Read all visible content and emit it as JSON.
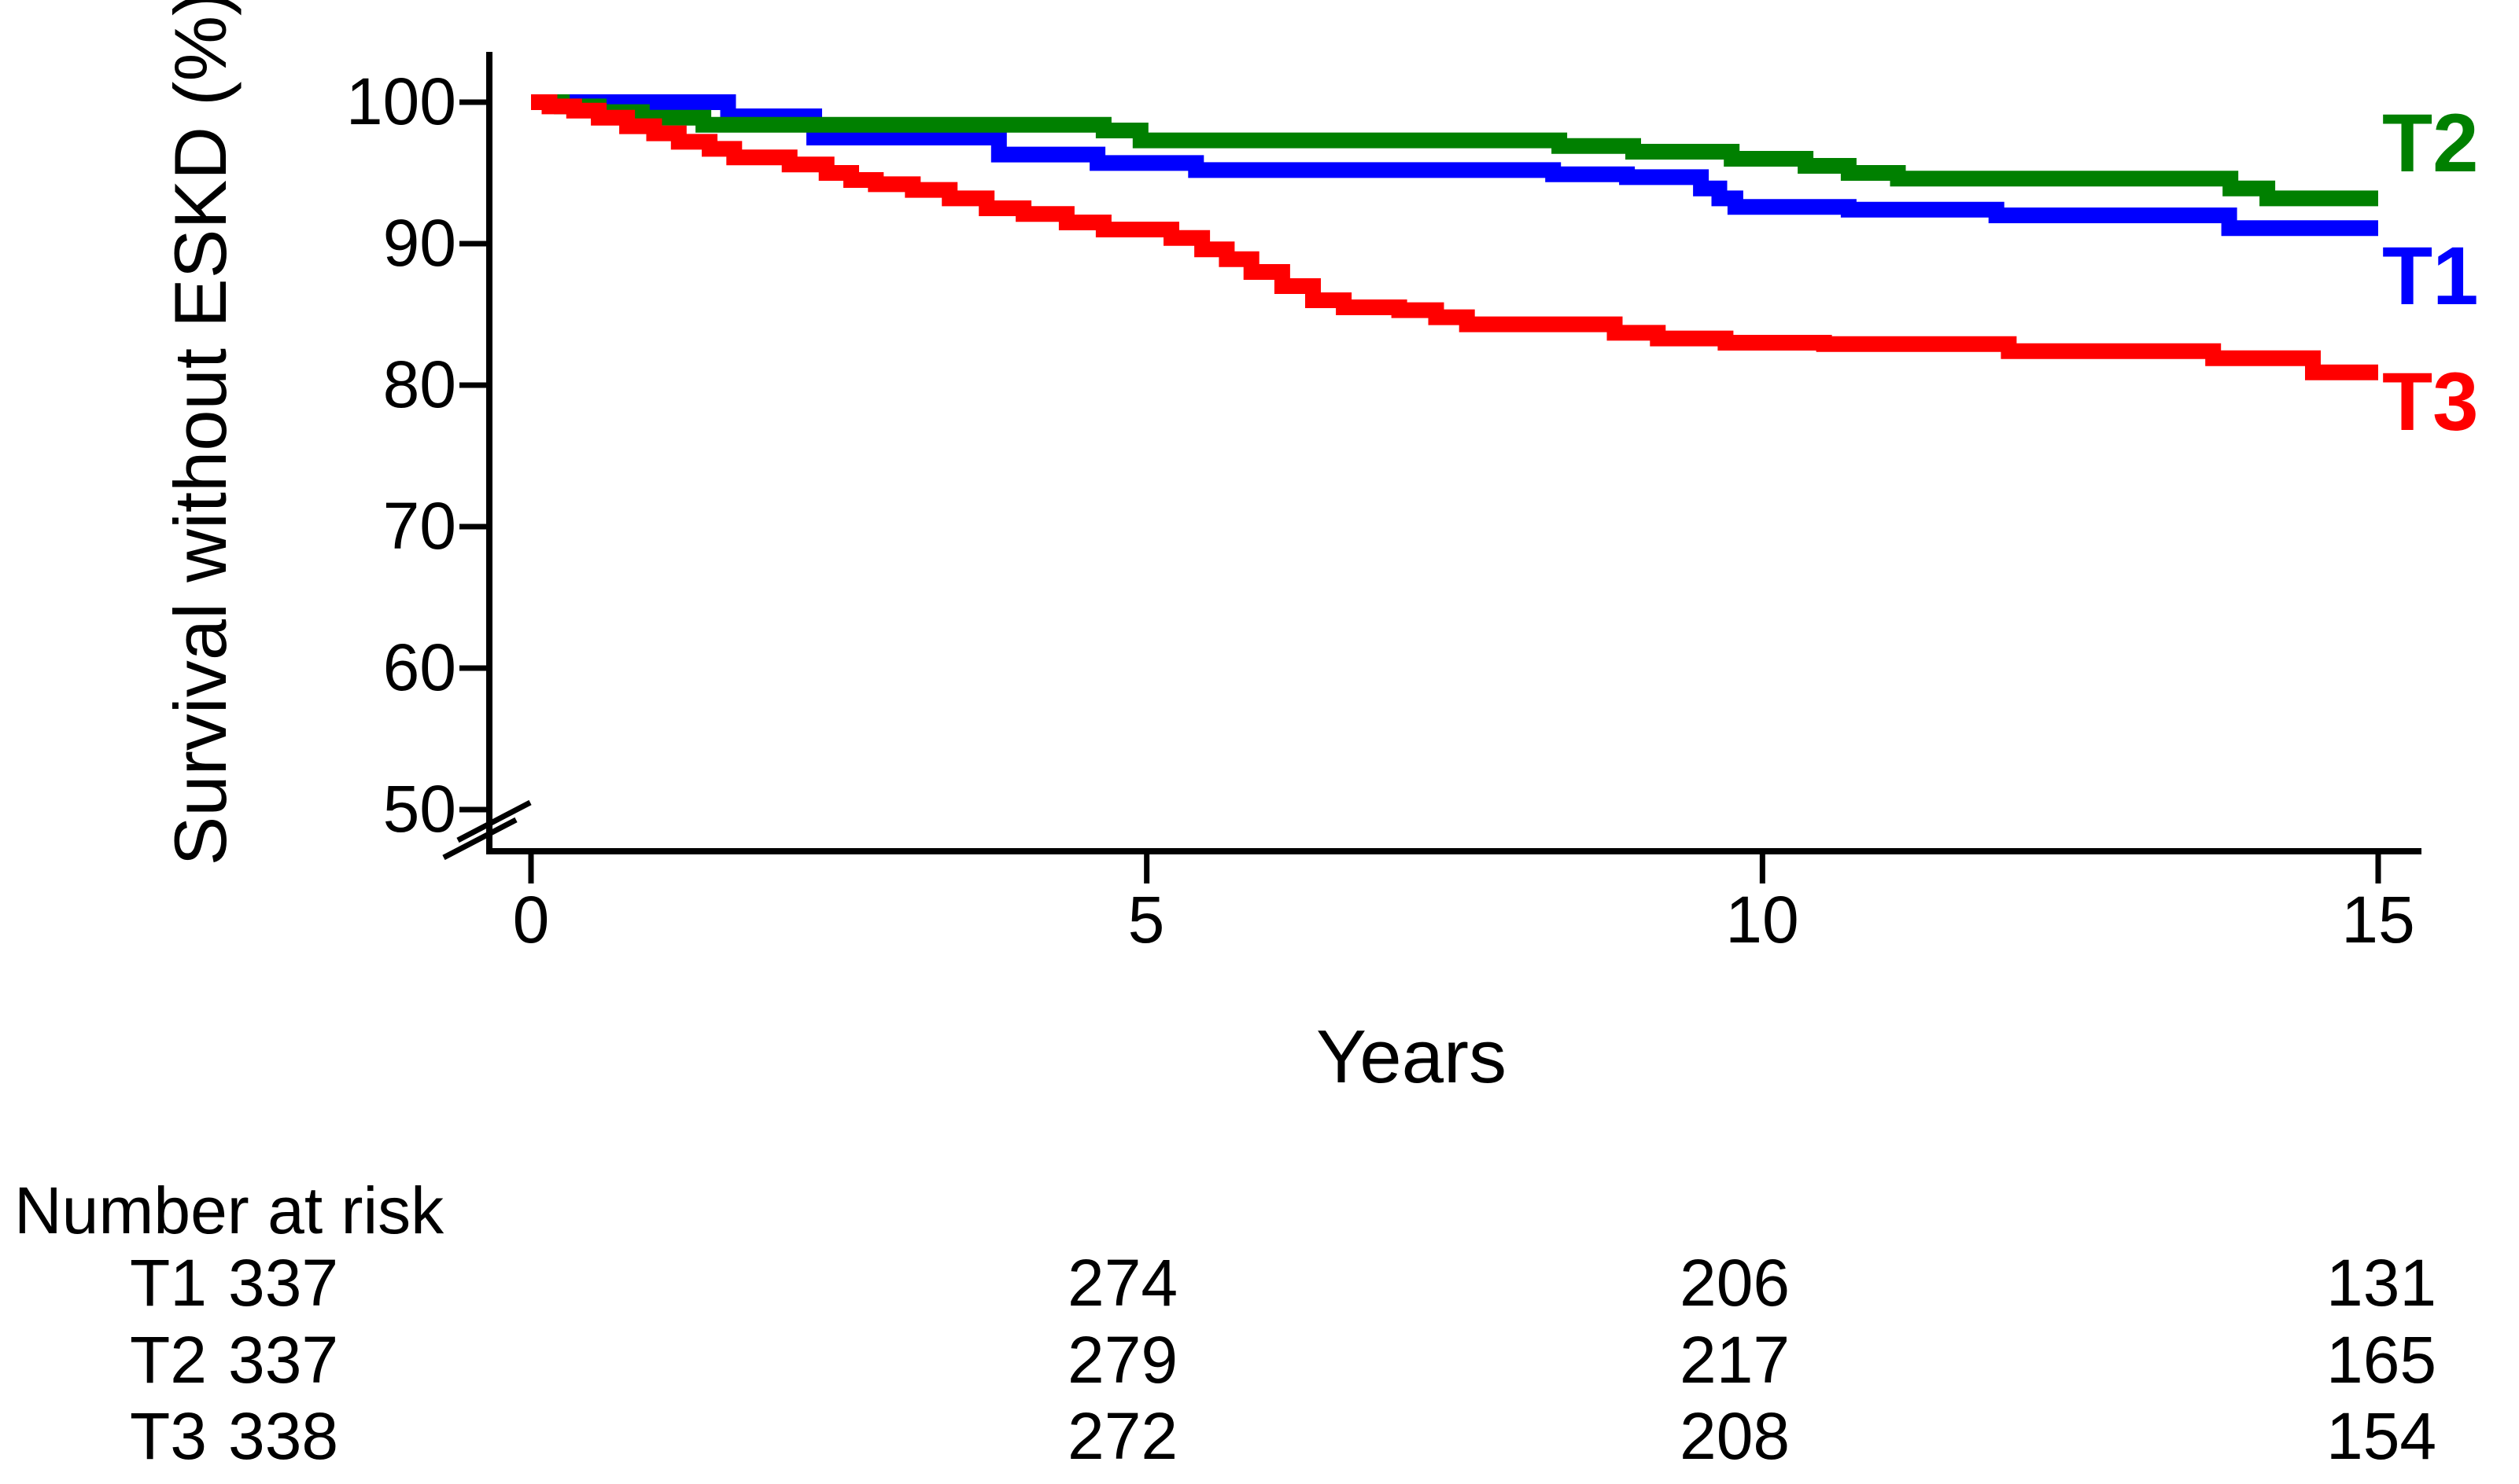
{
  "figure": {
    "y_axis_title": "Survival without ESKD (%)",
    "x_axis_title": "Years",
    "risk_table": {
      "header": "Number at risk",
      "time_points": [
        0,
        5,
        10,
        15
      ],
      "rows": [
        {
          "label": "T1",
          "counts": [
            "337",
            "274",
            "206",
            "131"
          ]
        },
        {
          "label": "T2",
          "counts": [
            "337",
            "279",
            "217",
            "165"
          ]
        },
        {
          "label": "T3",
          "counts": [
            "338",
            "272",
            "208",
            "154"
          ]
        }
      ]
    }
  },
  "chart_data": {
    "type": "line",
    "subtype": "kaplan-meier-step-curves",
    "title": "",
    "xlabel": "Years",
    "ylabel": "Survival without ESKD (%)",
    "xlim": [
      0,
      15
    ],
    "ylim_displayed": [
      50,
      100
    ],
    "y_axis_break_below": 50,
    "grid": false,
    "x_ticks": [
      0,
      5,
      10,
      15
    ],
    "y_ticks": [
      100,
      90,
      80,
      70,
      60,
      50
    ],
    "legend_position": "right-of-curve-ends",
    "axis_color": "#000000",
    "series": [
      {
        "name": "T1",
        "color": "#0000ff",
        "steps": [
          [
            0,
            100
          ],
          [
            1.6,
            99.0
          ],
          [
            2.3,
            97.5
          ],
          [
            3.8,
            96.3
          ],
          [
            4.6,
            95.7
          ],
          [
            5.4,
            95.2
          ],
          [
            8.3,
            94.9
          ],
          [
            8.9,
            94.7
          ],
          [
            9.5,
            93.9
          ],
          [
            9.65,
            93.2
          ],
          [
            9.78,
            92.6
          ],
          [
            10.7,
            92.4
          ],
          [
            11.9,
            92.0
          ],
          [
            13.79,
            91.1
          ],
          [
            15,
            91.1
          ]
        ]
      },
      {
        "name": "T2",
        "color": "#008000",
        "steps": [
          [
            0,
            100
          ],
          [
            0.25,
            99.7
          ],
          [
            0.55,
            99.3
          ],
          [
            0.9,
            98.9
          ],
          [
            1.4,
            98.4
          ],
          [
            4.65,
            98.0
          ],
          [
            4.95,
            97.3
          ],
          [
            8.35,
            96.9
          ],
          [
            8.95,
            96.5
          ],
          [
            9.75,
            96.0
          ],
          [
            10.35,
            95.5
          ],
          [
            10.7,
            95.0
          ],
          [
            11.1,
            94.6
          ],
          [
            13.8,
            93.9
          ],
          [
            14.1,
            93.2
          ],
          [
            15,
            93.2
          ]
        ]
      },
      {
        "name": "T3",
        "color": "#ff0000",
        "steps": [
          [
            0,
            100
          ],
          [
            0.15,
            99.7
          ],
          [
            0.35,
            99.4
          ],
          [
            0.55,
            98.9
          ],
          [
            0.78,
            98.3
          ],
          [
            1.0,
            97.8
          ],
          [
            1.2,
            97.2
          ],
          [
            1.45,
            96.7
          ],
          [
            1.65,
            96.1
          ],
          [
            2.1,
            95.6
          ],
          [
            2.4,
            95.0
          ],
          [
            2.6,
            94.5
          ],
          [
            2.8,
            94.2
          ],
          [
            3.1,
            93.8
          ],
          [
            3.4,
            93.2
          ],
          [
            3.7,
            92.5
          ],
          [
            4.0,
            92.1
          ],
          [
            4.35,
            91.5
          ],
          [
            4.65,
            91.0
          ],
          [
            5.2,
            90.4
          ],
          [
            5.45,
            89.6
          ],
          [
            5.65,
            88.9
          ],
          [
            5.85,
            88.0
          ],
          [
            6.1,
            87.0
          ],
          [
            6.35,
            86.0
          ],
          [
            6.6,
            85.5
          ],
          [
            7.05,
            85.3
          ],
          [
            7.35,
            84.8
          ],
          [
            7.6,
            84.3
          ],
          [
            8.8,
            83.7
          ],
          [
            9.15,
            83.3
          ],
          [
            9.7,
            83.0
          ],
          [
            10.5,
            82.9
          ],
          [
            12.0,
            82.4
          ],
          [
            13.66,
            81.9
          ],
          [
            14.47,
            80.9
          ],
          [
            15,
            80.9
          ]
        ]
      }
    ],
    "curve_end_labels": [
      "T2",
      "T1",
      "T3"
    ]
  }
}
